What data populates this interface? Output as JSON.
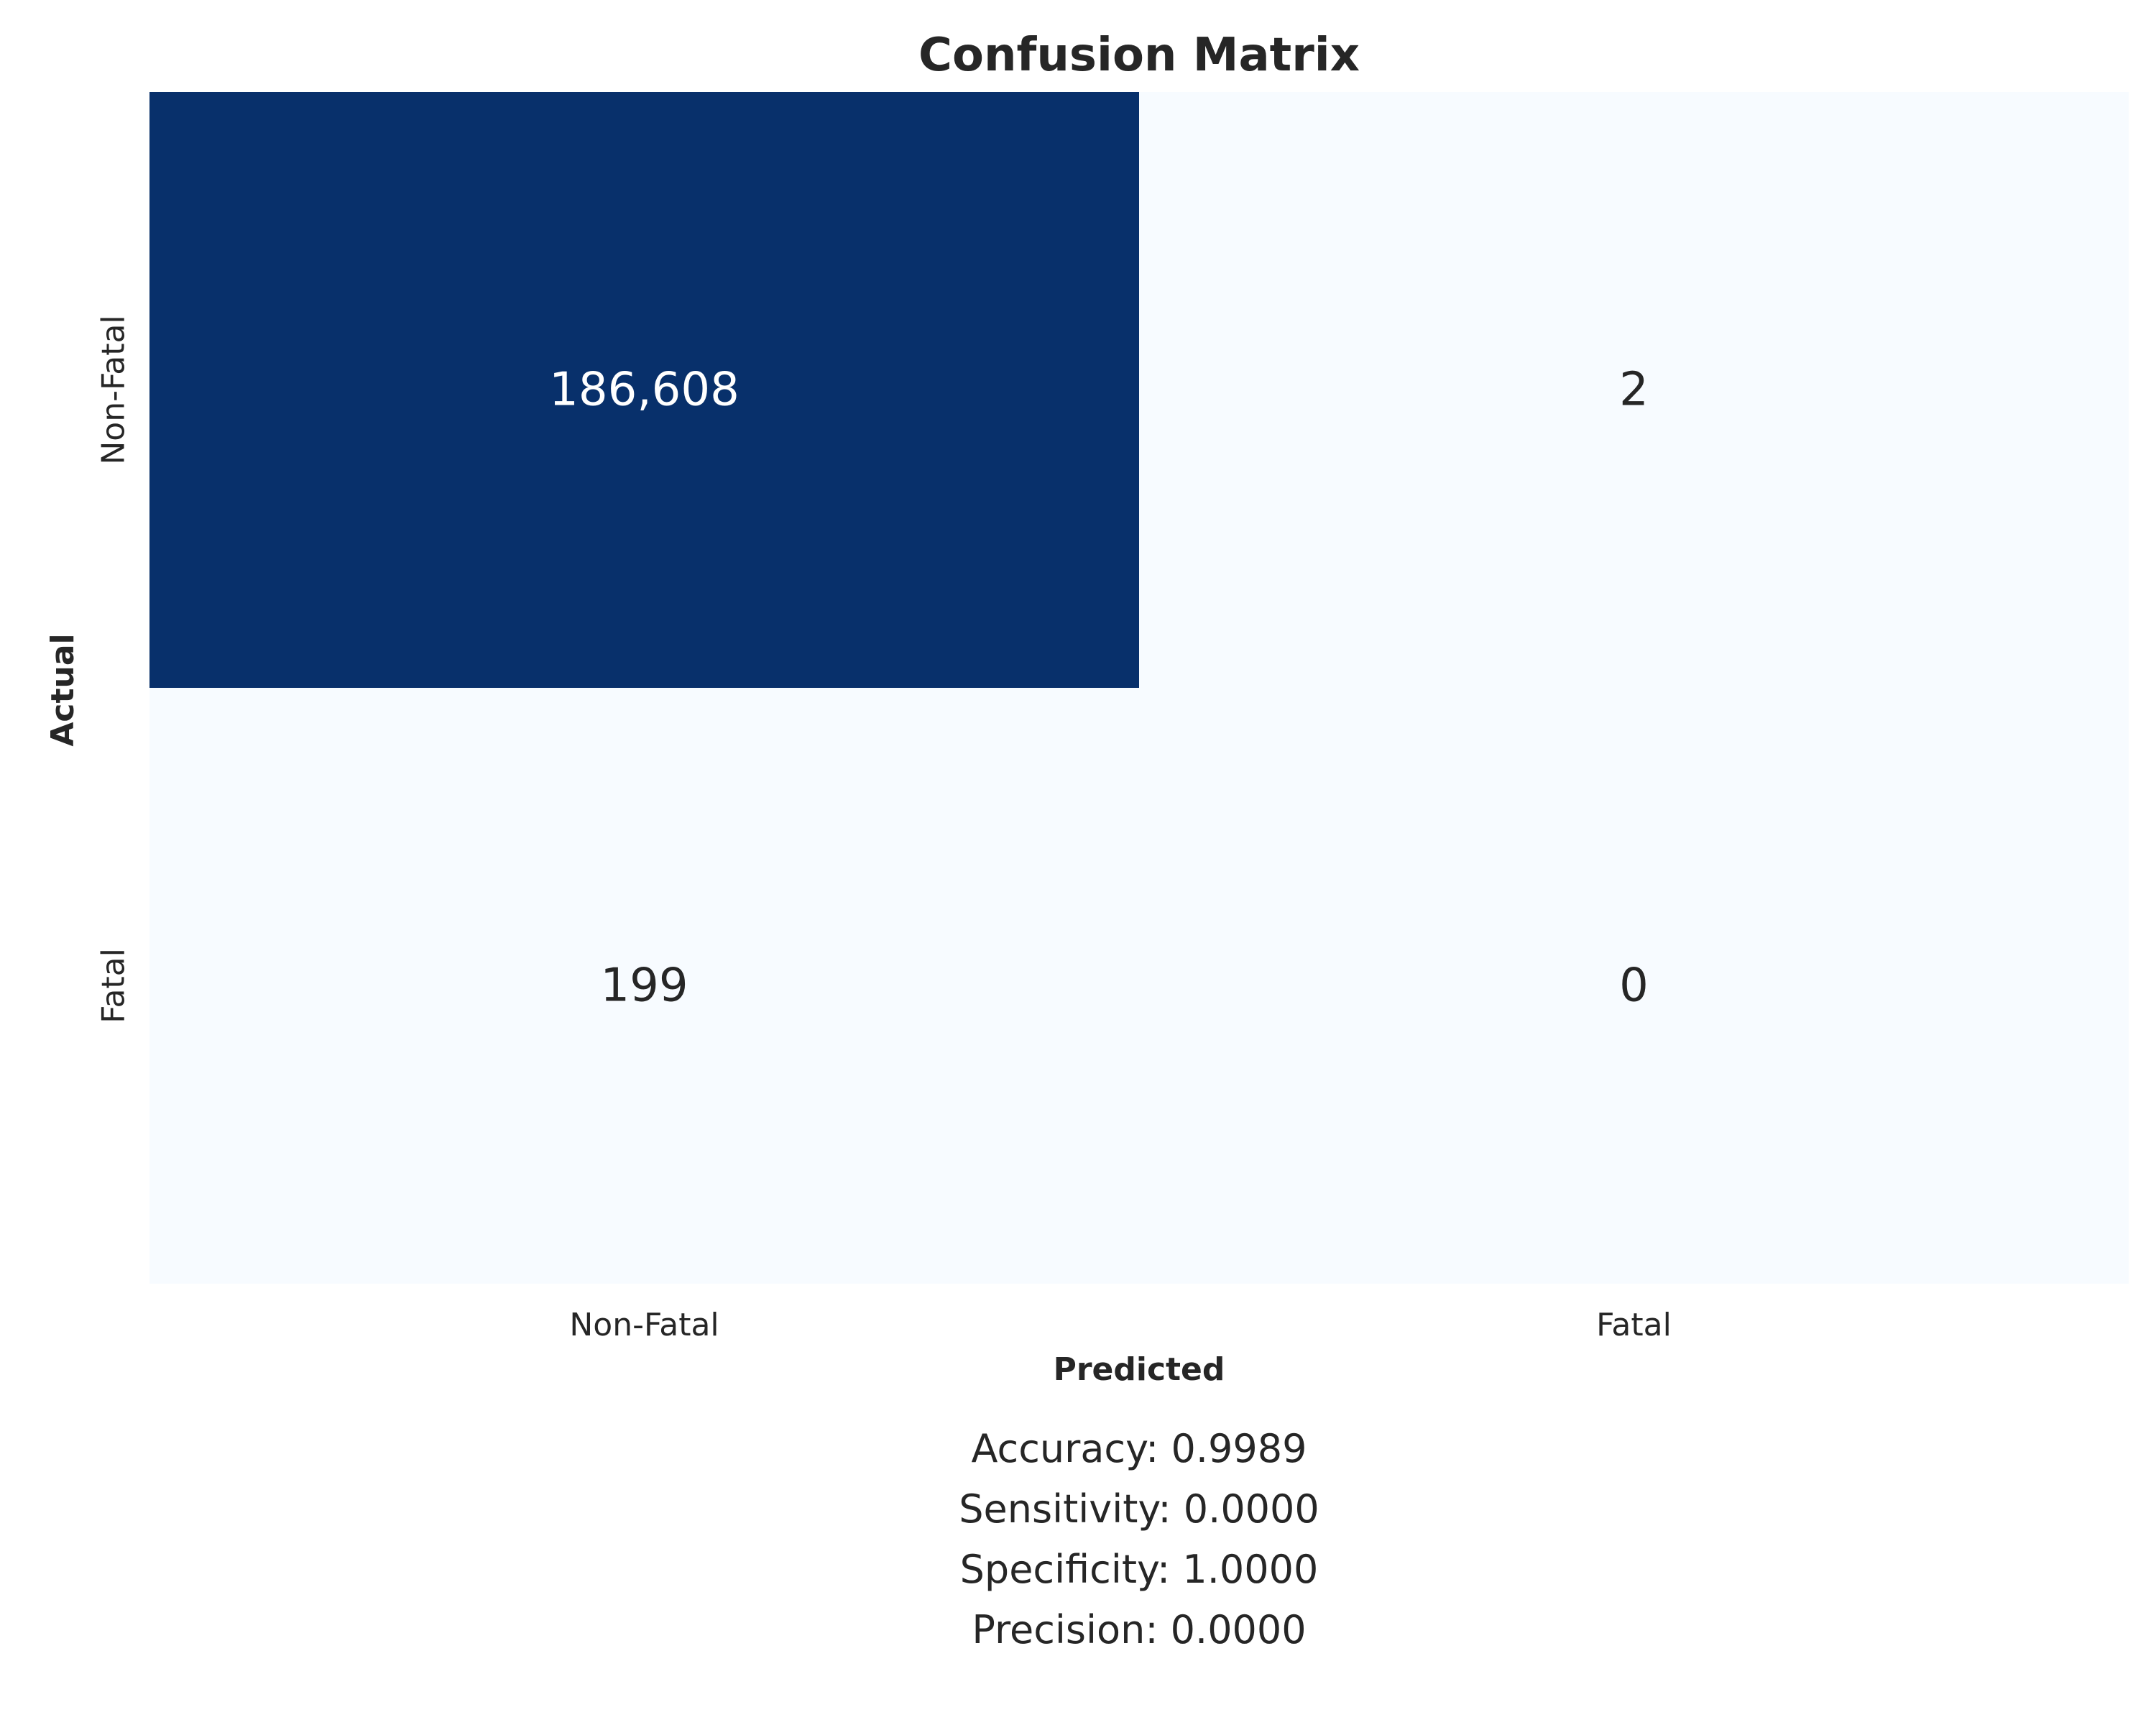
{
  "chart_data": {
    "type": "heatmap",
    "title": "Confusion Matrix",
    "xlabel": "Predicted",
    "ylabel": "Actual",
    "x_categories": [
      "Non-Fatal",
      "Fatal"
    ],
    "y_categories": [
      "Non-Fatal",
      "Fatal"
    ],
    "matrix": [
      [
        186608,
        2
      ],
      [
        199,
        0
      ]
    ],
    "cell_labels": [
      [
        "186,608",
        "2"
      ],
      [
        "199",
        "0"
      ]
    ],
    "colormap": "Blues",
    "colors": {
      "low": "#f7fbff",
      "high": "#08306b",
      "text_dark": "#262626",
      "text_light": "#ffffff"
    },
    "colorbar": false,
    "metrics": [
      "Accuracy: 0.9989",
      "Sensitivity: 0.0000",
      "Specificity: 1.0000",
      "Precision: 0.0000"
    ]
  }
}
